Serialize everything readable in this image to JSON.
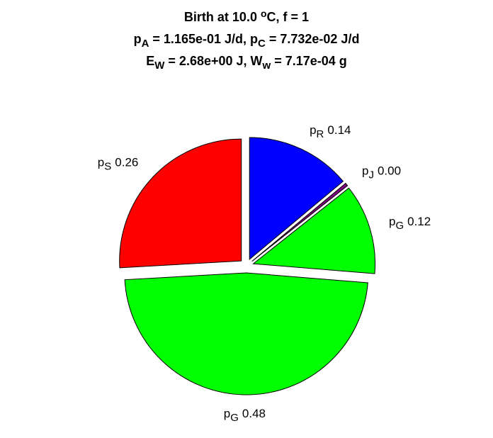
{
  "chart_data": {
    "type": "pie",
    "title": [
      [
        {
          "text": "Birth at 10.0 "
        },
        {
          "text": "o",
          "sup": true
        },
        {
          "text": "C, f = 1"
        }
      ],
      [
        {
          "text": "p"
        },
        {
          "text": "A",
          "sub": true
        },
        {
          "text": " = 1.165e-01 J/d, p"
        },
        {
          "text": "C",
          "sub": true
        },
        {
          "text": " = 7.732e-02 J/d"
        }
      ],
      [
        {
          "text": "E"
        },
        {
          "text": "W",
          "sub": true
        },
        {
          "text": " = 2.68e+00 J, W"
        },
        {
          "text": "w",
          "sub": true
        },
        {
          "text": " = 7.17e-04 g"
        }
      ]
    ],
    "categories": [
      {
        "text": "p",
        "sub": "R"
      },
      {
        "text": "p",
        "sub": "J"
      },
      {
        "text": "p",
        "sub": "G"
      },
      {
        "text": "p",
        "sub": "G"
      },
      {
        "text": "p",
        "sub": "S"
      }
    ],
    "values": [
      0.14,
      0.004,
      0.12,
      0.48,
      0.26
    ],
    "value_labels": [
      "0.14",
      "0.00",
      "0.12",
      "0.48",
      "0.26"
    ],
    "colors": [
      "#0000ff",
      "#800080",
      "#00ff00",
      "#00ff00",
      "#ff0000"
    ],
    "explode": true
  }
}
